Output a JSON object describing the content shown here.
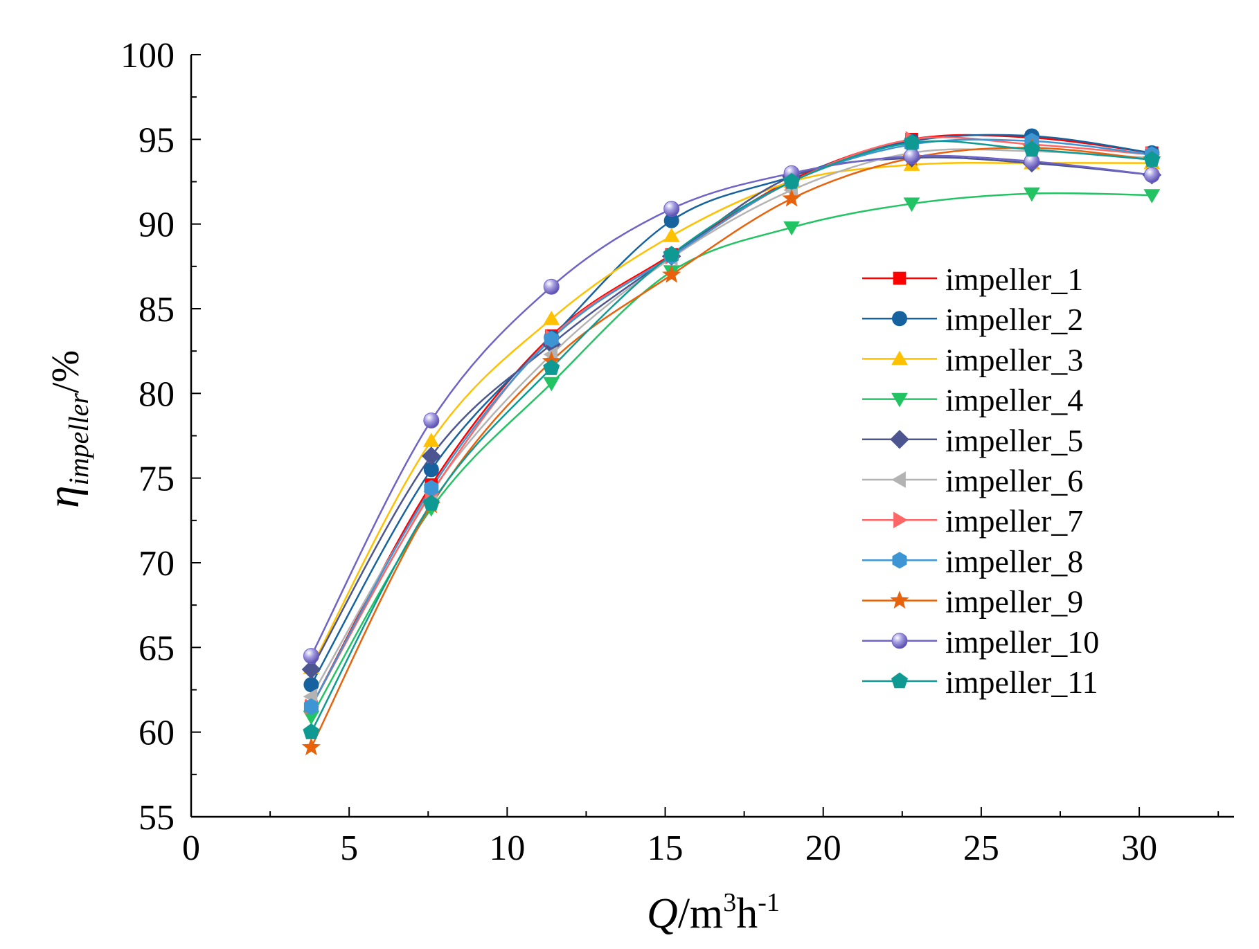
{
  "chart_data": {
    "type": "line",
    "title": "",
    "xlabel": {
      "var": "Q",
      "unit": "/m",
      "sup1": "3",
      "mid": "h",
      "sup2": "-1"
    },
    "ylabel": {
      "var": "η",
      "sub": "impeller",
      "unit": "/%"
    },
    "xlim": [
      0,
      33
    ],
    "ylim": [
      55,
      100
    ],
    "x_ticks": [
      0,
      5,
      10,
      15,
      20,
      25,
      30
    ],
    "x_tick_labels": [
      "0",
      "5",
      "10",
      "15",
      "20",
      "25",
      "30"
    ],
    "y_ticks": [
      55,
      60,
      65,
      70,
      75,
      80,
      85,
      90,
      95,
      100
    ],
    "y_tick_labels": [
      "55",
      "60",
      "65",
      "70",
      "75",
      "80",
      "85",
      "90",
      "95",
      "100"
    ],
    "grid": false,
    "legend_position": "right",
    "x": [
      3.8,
      7.6,
      11.4,
      15.2,
      19.0,
      22.8,
      26.6,
      30.4
    ],
    "series": [
      {
        "name": "impeller_1",
        "color": "#ff0000",
        "marker": "square",
        "values": [
          61.5,
          74.6,
          83.4,
          88.2,
          92.6,
          95.0,
          95.1,
          94.2
        ]
      },
      {
        "name": "impeller_2",
        "color": "#15629e",
        "marker": "circle",
        "values": [
          62.8,
          75.5,
          83.3,
          90.2,
          92.8,
          94.9,
          95.2,
          94.2
        ]
      },
      {
        "name": "impeller_3",
        "color": "#ffc000",
        "marker": "triangle-up",
        "values": [
          63.8,
          77.2,
          84.4,
          89.3,
          92.5,
          93.5,
          93.6,
          93.6
        ]
      },
      {
        "name": "impeller_4",
        "color": "#21c363",
        "marker": "triangle-down",
        "values": [
          60.9,
          73.2,
          80.6,
          87.2,
          89.8,
          91.2,
          91.8,
          91.7
        ]
      },
      {
        "name": "impeller_5",
        "color": "#4d5590",
        "marker": "diamond",
        "values": [
          63.7,
          76.3,
          82.9,
          88.1,
          92.8,
          93.9,
          93.6,
          92.9
        ]
      },
      {
        "name": "impeller_6",
        "color": "#b3b3b3",
        "marker": "triangle-left",
        "values": [
          62.1,
          74.2,
          82.3,
          88.0,
          92.0,
          94.2,
          94.3,
          93.9
        ]
      },
      {
        "name": "impeller_7",
        "color": "#ff6666",
        "marker": "triangle-right",
        "values": [
          61.5,
          74.1,
          83.3,
          88.1,
          92.5,
          95.0,
          94.7,
          94.1
        ]
      },
      {
        "name": "impeller_8",
        "color": "#3d95d4",
        "marker": "hexagon",
        "values": [
          61.5,
          74.4,
          83.2,
          88.1,
          92.5,
          94.7,
          94.9,
          94.1
        ]
      },
      {
        "name": "impeller_9",
        "color": "#e8620c",
        "marker": "star",
        "values": [
          59.1,
          73.4,
          81.9,
          87.0,
          91.5,
          93.9,
          94.5,
          93.8
        ]
      },
      {
        "name": "impeller_10",
        "color": "#6e63c6",
        "marker": "sphere",
        "values": [
          64.5,
          78.4,
          86.3,
          90.9,
          93.0,
          94.0,
          93.7,
          92.9
        ]
      },
      {
        "name": "impeller_11",
        "color": "#0e9a93",
        "marker": "pentagon",
        "values": [
          60.0,
          73.5,
          81.5,
          88.2,
          92.5,
          94.8,
          94.4,
          93.8
        ]
      }
    ]
  }
}
